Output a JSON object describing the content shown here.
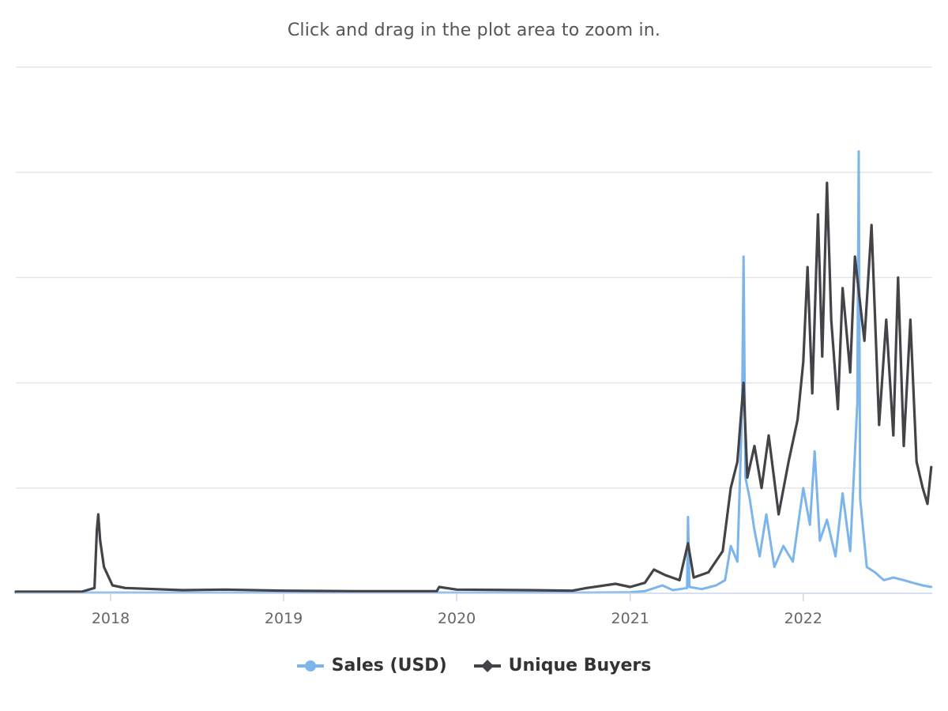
{
  "chart_data": {
    "type": "line",
    "subtitle": "Click and drag in the plot area to zoom in.",
    "xlim": [
      "2017-06-15",
      "2022-09-30"
    ],
    "ylim": [
      0,
      100
    ],
    "x_tick_labels": [
      "2018",
      "2019",
      "2020",
      "2021",
      "2022"
    ],
    "x_ticks": [
      "2018-01-01",
      "2019-01-01",
      "2020-01-01",
      "2021-01-01",
      "2022-01-01"
    ],
    "y_gridlines": [
      0,
      20,
      40,
      60,
      80,
      100
    ],
    "y_tick_labels_shown": false,
    "legend_position": "bottom-center",
    "series": [
      {
        "name": "Sales (USD)",
        "color": "#7cb5ec",
        "marker": "circle",
        "points": [
          [
            "2017-06-15",
            0.1
          ],
          [
            "2017-12-01",
            0.1
          ],
          [
            "2018-06-01",
            0.1
          ],
          [
            "2019-01-01",
            0.1
          ],
          [
            "2019-06-01",
            0.1
          ],
          [
            "2020-01-01",
            0.1
          ],
          [
            "2020-06-01",
            0.1
          ],
          [
            "2020-10-01",
            0.1
          ],
          [
            "2021-01-01",
            0.2
          ],
          [
            "2021-02-01",
            0.4
          ],
          [
            "2021-03-10",
            1.5
          ],
          [
            "2021-04-01",
            0.6
          ],
          [
            "2021-05-01",
            1.0
          ],
          [
            "2021-05-03",
            14.5
          ],
          [
            "2021-05-06",
            1.2
          ],
          [
            "2021-06-01",
            0.8
          ],
          [
            "2021-07-01",
            1.5
          ],
          [
            "2021-07-20",
            2.5
          ],
          [
            "2021-08-01",
            9.0
          ],
          [
            "2021-08-15",
            6.0
          ],
          [
            "2021-08-25",
            35.0
          ],
          [
            "2021-08-28",
            64.0
          ],
          [
            "2021-09-01",
            22.0
          ],
          [
            "2021-09-10",
            18.0
          ],
          [
            "2021-09-20",
            12.0
          ],
          [
            "2021-10-01",
            7.0
          ],
          [
            "2021-10-15",
            15.0
          ],
          [
            "2021-11-01",
            5.0
          ],
          [
            "2021-11-20",
            9.0
          ],
          [
            "2021-12-10",
            6.0
          ],
          [
            "2022-01-01",
            20.0
          ],
          [
            "2022-01-15",
            13.0
          ],
          [
            "2022-01-25",
            27.0
          ],
          [
            "2022-02-05",
            10.0
          ],
          [
            "2022-02-20",
            14.0
          ],
          [
            "2022-03-10",
            7.0
          ],
          [
            "2022-03-25",
            19.0
          ],
          [
            "2022-04-10",
            8.0
          ],
          [
            "2022-04-25",
            36.0
          ],
          [
            "2022-04-28",
            84.0
          ],
          [
            "2022-05-01",
            18.0
          ],
          [
            "2022-05-15",
            5.0
          ],
          [
            "2022-06-01",
            4.0
          ],
          [
            "2022-06-20",
            2.5
          ],
          [
            "2022-07-10",
            3.0
          ],
          [
            "2022-08-01",
            2.5
          ],
          [
            "2022-08-20",
            2.0
          ],
          [
            "2022-09-10",
            1.5
          ],
          [
            "2022-09-28",
            1.2
          ]
        ]
      },
      {
        "name": "Unique Buyers",
        "color": "#434348",
        "marker": "diamond",
        "points": [
          [
            "2017-06-15",
            0.3
          ],
          [
            "2017-11-01",
            0.3
          ],
          [
            "2017-11-28",
            1.0
          ],
          [
            "2017-12-03",
            12.0
          ],
          [
            "2017-12-06",
            15.0
          ],
          [
            "2017-12-10",
            10.0
          ],
          [
            "2017-12-18",
            5.0
          ],
          [
            "2018-01-05",
            1.5
          ],
          [
            "2018-02-01",
            1.0
          ],
          [
            "2018-06-01",
            0.6
          ],
          [
            "2018-09-01",
            0.7
          ],
          [
            "2019-01-01",
            0.5
          ],
          [
            "2019-06-01",
            0.4
          ],
          [
            "2019-11-20",
            0.4
          ],
          [
            "2019-11-25",
            1.2
          ],
          [
            "2020-01-01",
            0.7
          ],
          [
            "2020-06-01",
            0.6
          ],
          [
            "2020-09-01",
            0.5
          ],
          [
            "2020-10-01",
            1.0
          ],
          [
            "2020-12-01",
            1.8
          ],
          [
            "2021-01-01",
            1.2
          ],
          [
            "2021-02-01",
            2.0
          ],
          [
            "2021-02-20",
            4.5
          ],
          [
            "2021-03-15",
            3.5
          ],
          [
            "2021-04-15",
            2.5
          ],
          [
            "2021-05-03",
            9.5
          ],
          [
            "2021-05-15",
            3.0
          ],
          [
            "2021-06-15",
            4.0
          ],
          [
            "2021-07-15",
            8.0
          ],
          [
            "2021-08-01",
            20.0
          ],
          [
            "2021-08-15",
            25.0
          ],
          [
            "2021-08-28",
            40.0
          ],
          [
            "2021-09-05",
            22.0
          ],
          [
            "2021-09-20",
            28.0
          ],
          [
            "2021-10-05",
            20.0
          ],
          [
            "2021-10-20",
            30.0
          ],
          [
            "2021-11-10",
            15.0
          ],
          [
            "2021-12-01",
            25.0
          ],
          [
            "2021-12-20",
            33.0
          ],
          [
            "2022-01-01",
            44.0
          ],
          [
            "2022-01-10",
            62.0
          ],
          [
            "2022-01-20",
            38.0
          ],
          [
            "2022-02-01",
            72.0
          ],
          [
            "2022-02-10",
            45.0
          ],
          [
            "2022-02-20",
            78.0
          ],
          [
            "2022-03-01",
            52.0
          ],
          [
            "2022-03-15",
            35.0
          ],
          [
            "2022-03-25",
            58.0
          ],
          [
            "2022-04-10",
            42.0
          ],
          [
            "2022-04-20",
            64.0
          ],
          [
            "2022-05-01",
            55.0
          ],
          [
            "2022-05-10",
            48.0
          ],
          [
            "2022-05-25",
            70.0
          ],
          [
            "2022-06-10",
            32.0
          ],
          [
            "2022-06-25",
            52.0
          ],
          [
            "2022-07-10",
            30.0
          ],
          [
            "2022-07-20",
            60.0
          ],
          [
            "2022-08-01",
            28.0
          ],
          [
            "2022-08-15",
            52.0
          ],
          [
            "2022-08-28",
            25.0
          ],
          [
            "2022-09-10",
            20.0
          ],
          [
            "2022-09-20",
            17.0
          ],
          [
            "2022-09-28",
            24.0
          ]
        ]
      }
    ]
  }
}
